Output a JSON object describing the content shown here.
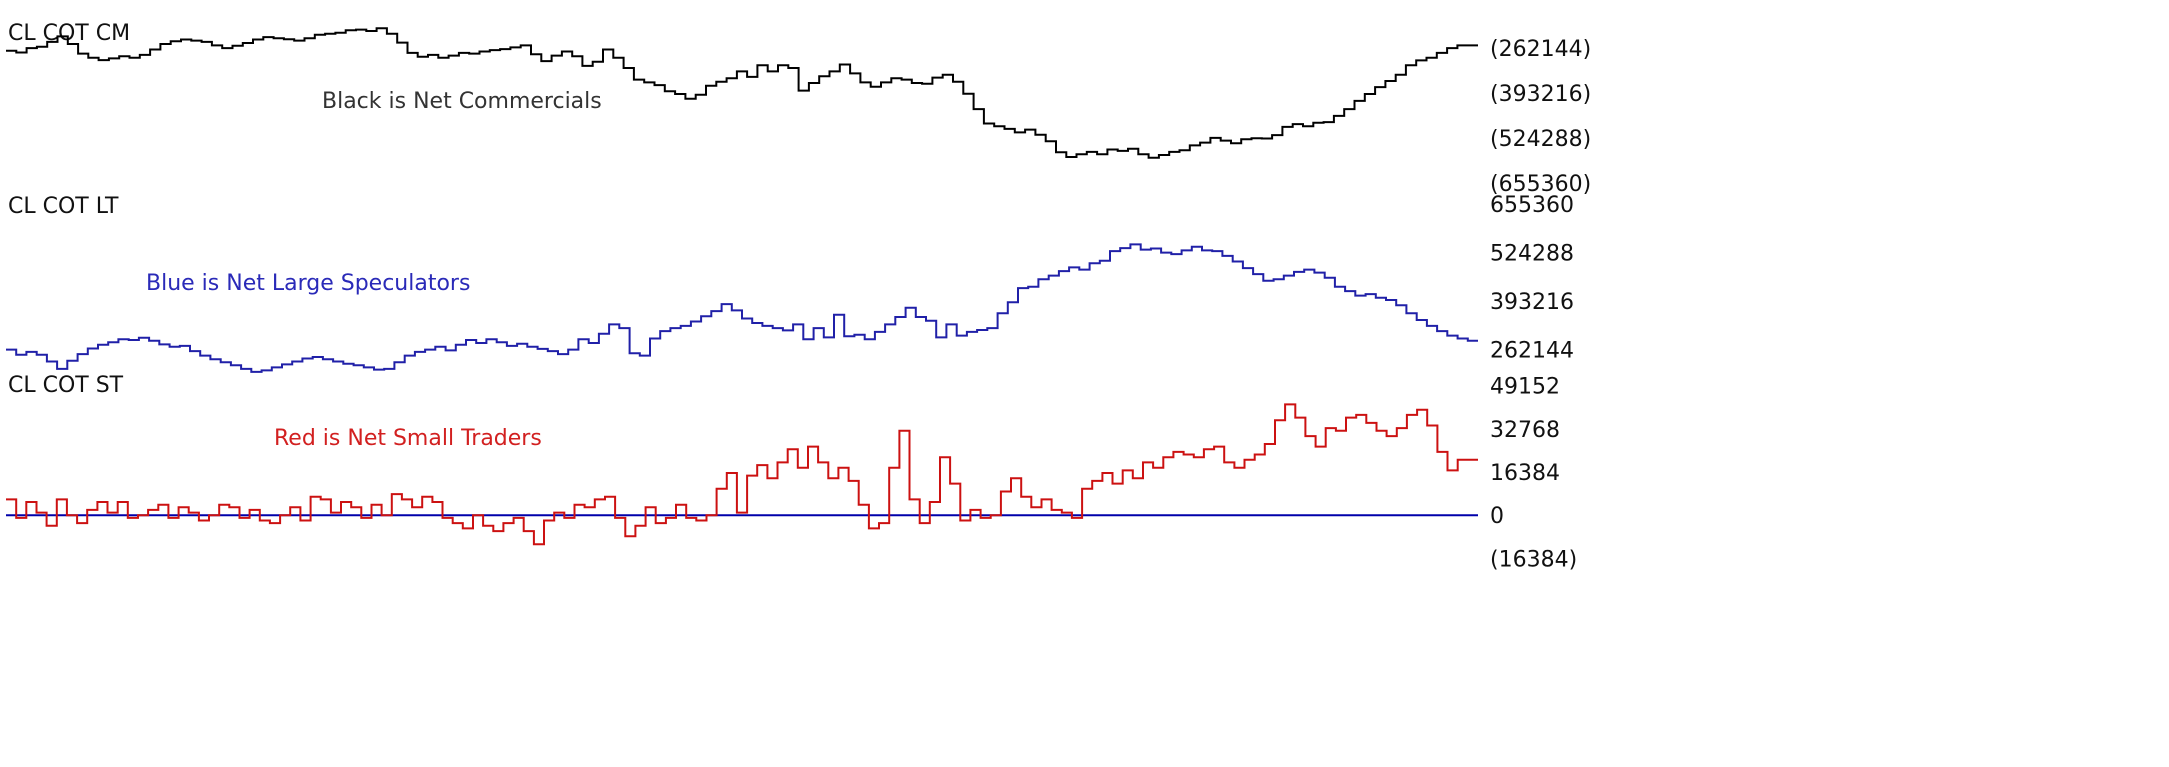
{
  "chart_data": [
    {
      "type": "line",
      "title": "CL COT CM",
      "annotation": "Black is Net Commercials",
      "line_color": "#000000",
      "annotation_color": "#333333",
      "y_tick_labels": [
        "(262144)",
        "(393216)",
        "(524288)",
        "(655360)"
      ],
      "y_ticks": [
        -262144,
        -393216,
        -524288,
        -655360
      ],
      "ylim": [
        -720000,
        -180000
      ],
      "series": [
        {
          "values": [
            -270000,
            -275000,
            -262000,
            -258000,
            -244000,
            -228000,
            -250000,
            -278000,
            -290000,
            -297000,
            -292000,
            -286000,
            -290000,
            -282000,
            -266000,
            -250000,
            -242000,
            -237000,
            -240000,
            -244000,
            -254000,
            -262000,
            -255000,
            -247000,
            -237000,
            -230000,
            -233000,
            -236000,
            -240000,
            -233000,
            -223000,
            -220000,
            -217000,
            -210000,
            -208000,
            -212000,
            -204000,
            -220000,
            -246000,
            -276000,
            -287000,
            -282000,
            -290000,
            -284000,
            -276000,
            -278000,
            -272000,
            -268000,
            -265000,
            -260000,
            -254000,
            -280000,
            -300000,
            -284000,
            -272000,
            -286000,
            -314000,
            -302000,
            -266000,
            -290000,
            -320000,
            -354000,
            -362000,
            -370000,
            -388000,
            -396000,
            -410000,
            -398000,
            -372000,
            -360000,
            -350000,
            -330000,
            -346000,
            -312000,
            -330000,
            -312000,
            -320000,
            -386000,
            -364000,
            -344000,
            -330000,
            -310000,
            -336000,
            -362000,
            -375000,
            -362000,
            -350000,
            -354000,
            -364000,
            -366000,
            -348000,
            -340000,
            -360000,
            -395000,
            -440000,
            -482000,
            -490000,
            -498000,
            -508000,
            -500000,
            -515000,
            -534000,
            -566000,
            -580000,
            -572000,
            -565000,
            -572000,
            -558000,
            -562000,
            -556000,
            -572000,
            -582000,
            -574000,
            -565000,
            -560000,
            -546000,
            -538000,
            -524000,
            -532000,
            -540000,
            -528000,
            -525000,
            -526000,
            -516000,
            -492000,
            -484000,
            -490000,
            -480000,
            -478000,
            -460000,
            -440000,
            -416000,
            -396000,
            -376000,
            -358000,
            -340000,
            -312000,
            -298000,
            -290000,
            -276000,
            -262000,
            -254000,
            -254000
          ]
        }
      ]
    },
    {
      "type": "line",
      "title": "CL COT LT",
      "annotation": "Blue is Net Large Speculators",
      "line_color": "#2020a8",
      "annotation_color": "#2a2ab8",
      "y_tick_labels": [
        "655360",
        "524288",
        "393216",
        "262144"
      ],
      "y_ticks": [
        655360,
        524288,
        393216,
        262144
      ],
      "ylim": [
        180000,
        720000
      ],
      "series": [
        {
          "values": [
            262000,
            248000,
            256000,
            248000,
            230000,
            210000,
            232000,
            250000,
            265000,
            275000,
            282000,
            290000,
            288000,
            294000,
            286000,
            276000,
            270000,
            272000,
            258000,
            246000,
            236000,
            228000,
            220000,
            210000,
            202000,
            206000,
            214000,
            222000,
            230000,
            238000,
            242000,
            236000,
            230000,
            224000,
            220000,
            214000,
            208000,
            210000,
            228000,
            246000,
            256000,
            262000,
            270000,
            260000,
            275000,
            288000,
            280000,
            290000,
            282000,
            272000,
            278000,
            270000,
            264000,
            258000,
            250000,
            262000,
            290000,
            280000,
            305000,
            330000,
            320000,
            252000,
            246000,
            292000,
            312000,
            320000,
            326000,
            338000,
            352000,
            366000,
            385000,
            368000,
            346000,
            334000,
            326000,
            320000,
            314000,
            330000,
            290000,
            320000,
            295000,
            356000,
            298000,
            302000,
            290000,
            310000,
            330000,
            350000,
            375000,
            350000,
            340000,
            295000,
            330000,
            300000,
            310000,
            315000,
            320000,
            360000,
            390000,
            428000,
            432000,
            452000,
            462000,
            474000,
            484000,
            478000,
            495000,
            502000,
            528000,
            536000,
            546000,
            532000,
            535000,
            524000,
            520000,
            530000,
            540000,
            530000,
            528000,
            515000,
            500000,
            482000,
            466000,
            448000,
            452000,
            462000,
            472000,
            478000,
            470000,
            456000,
            432000,
            420000,
            408000,
            412000,
            402000,
            396000,
            382000,
            360000,
            342000,
            326000,
            312000,
            300000,
            292000,
            286000
          ]
        }
      ]
    },
    {
      "type": "line",
      "title": "CL COT ST",
      "annotation": "Red is Net Small Traders",
      "line_color": "#cc1111",
      "annotation_color": "#d22020",
      "zero_line_color": "#0000aa",
      "y_tick_labels": [
        "49152",
        "32768",
        "16384",
        "0",
        "(16384)"
      ],
      "y_ticks": [
        49152,
        32768,
        16384,
        0,
        -16384
      ],
      "ylim": [
        -20000,
        52000
      ],
      "series": [
        {
          "values": [
            6000,
            -1000,
            5000,
            1000,
            -4000,
            6000,
            0,
            -3000,
            2000,
            5000,
            1000,
            5000,
            -1000,
            0,
            2000,
            4000,
            -1000,
            3000,
            1000,
            -2000,
            0,
            4000,
            3000,
            -1000,
            2000,
            -2000,
            -3000,
            0,
            3000,
            -2000,
            7000,
            6000,
            1000,
            5000,
            3000,
            -1000,
            4000,
            0,
            8000,
            6000,
            3000,
            7000,
            5000,
            -1000,
            -3000,
            -5000,
            0,
            -4000,
            -6000,
            -3000,
            -1000,
            -6000,
            -11000,
            -2000,
            1000,
            -1000,
            4000,
            3000,
            6000,
            7000,
            -1000,
            -8000,
            -4000,
            3000,
            -3000,
            -1000,
            4000,
            -1000,
            -2000,
            0,
            10000,
            16000,
            1000,
            15000,
            19000,
            14000,
            20000,
            25000,
            18000,
            26000,
            20000,
            14000,
            18000,
            13000,
            4000,
            -5000,
            -3000,
            18000,
            32000,
            6000,
            -3000,
            5000,
            22000,
            12000,
            -2000,
            2000,
            -1000,
            0,
            9000,
            14000,
            7000,
            3000,
            6000,
            2000,
            1000,
            -1000,
            10000,
            13000,
            16000,
            12000,
            17000,
            14000,
            20000,
            18000,
            22000,
            24000,
            23000,
            22000,
            25000,
            26000,
            20000,
            18000,
            21000,
            23000,
            27000,
            36000,
            42000,
            37000,
            30000,
            26000,
            33000,
            32000,
            37000,
            38000,
            35000,
            32000,
            30000,
            33000,
            38000,
            40000,
            34000,
            24000,
            17000,
            21000,
            21000
          ]
        }
      ]
    }
  ]
}
